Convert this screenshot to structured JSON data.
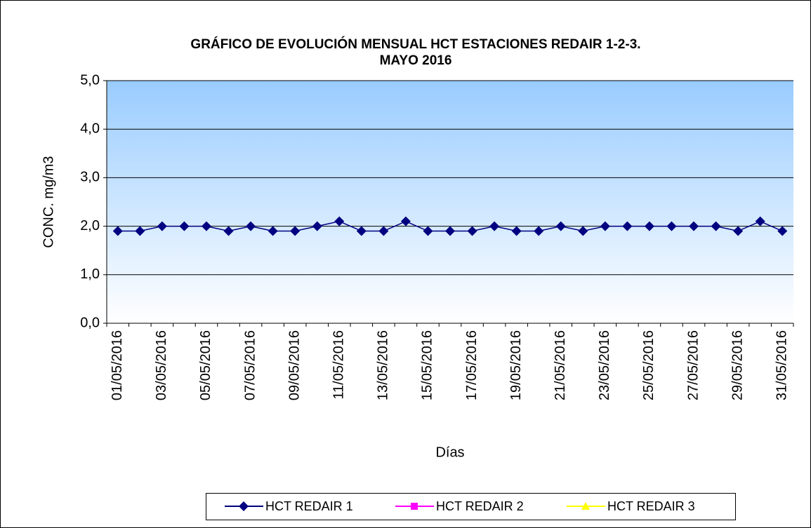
{
  "chart_data": {
    "type": "line",
    "title": [
      "GRÁFICO DE EVOLUCIÓN MENSUAL HCT ESTACIONES REDAIR 1-2-3.",
      "MAYO 2016"
    ],
    "x_label": "Días",
    "y_label": "CONC.  mg/m3",
    "categories": [
      "01/05/2016",
      null,
      "03/05/2016",
      null,
      "05/05/2016",
      null,
      "07/05/2016",
      null,
      "09/05/2016",
      null,
      "11/05/2016",
      null,
      "13/05/2016",
      null,
      "15/05/2016",
      null,
      "17/05/2016",
      null,
      "19/05/2016",
      null,
      "21/05/2016",
      null,
      "23/05/2016",
      null,
      "25/05/2016",
      null,
      "27/05/2016",
      null,
      "29/05/2016",
      null,
      "31/05/2016"
    ],
    "series": [
      {
        "name": "HCT REDAIR  1",
        "color": "#000080",
        "marker": "diamond",
        "values": [
          1.9,
          1.9,
          2.0,
          2.0,
          2.0,
          1.9,
          2.0,
          1.9,
          1.9,
          2.0,
          2.1,
          1.9,
          1.9,
          2.1,
          1.9,
          1.9,
          1.9,
          2.0,
          1.9,
          1.9,
          2.0,
          1.9,
          2.0,
          2.0,
          2.0,
          2.0,
          2.0,
          2.0,
          1.9,
          2.1,
          1.9
        ]
      },
      {
        "name": "HCT REDAIR  2",
        "color": "#ff00ff",
        "marker": "square",
        "values": [
          null,
          null,
          null,
          null,
          null,
          null,
          null,
          null,
          null,
          null,
          null,
          null,
          null,
          null,
          null,
          null,
          null,
          null,
          null,
          null,
          null,
          null,
          null,
          null,
          null,
          null,
          null,
          null,
          null,
          null,
          null
        ]
      },
      {
        "name": "HCT REDAIR  3",
        "color": "#ffff00",
        "marker": "triangle",
        "values": [
          null,
          null,
          null,
          null,
          null,
          null,
          null,
          null,
          null,
          null,
          null,
          null,
          null,
          null,
          null,
          null,
          null,
          null,
          null,
          null,
          null,
          null,
          null,
          null,
          null,
          null,
          null,
          null,
          null,
          null,
          null
        ]
      }
    ],
    "ylim": [
      0,
      5
    ],
    "yticks": [
      {
        "value": 0,
        "label": "0,0"
      },
      {
        "value": 1,
        "label": "1,0"
      },
      {
        "value": 2,
        "label": "2,0"
      },
      {
        "value": 3,
        "label": "3,0"
      },
      {
        "value": 4,
        "label": "4,0"
      },
      {
        "value": 5,
        "label": "5,0"
      }
    ],
    "grid": true,
    "legend": "bottom"
  }
}
